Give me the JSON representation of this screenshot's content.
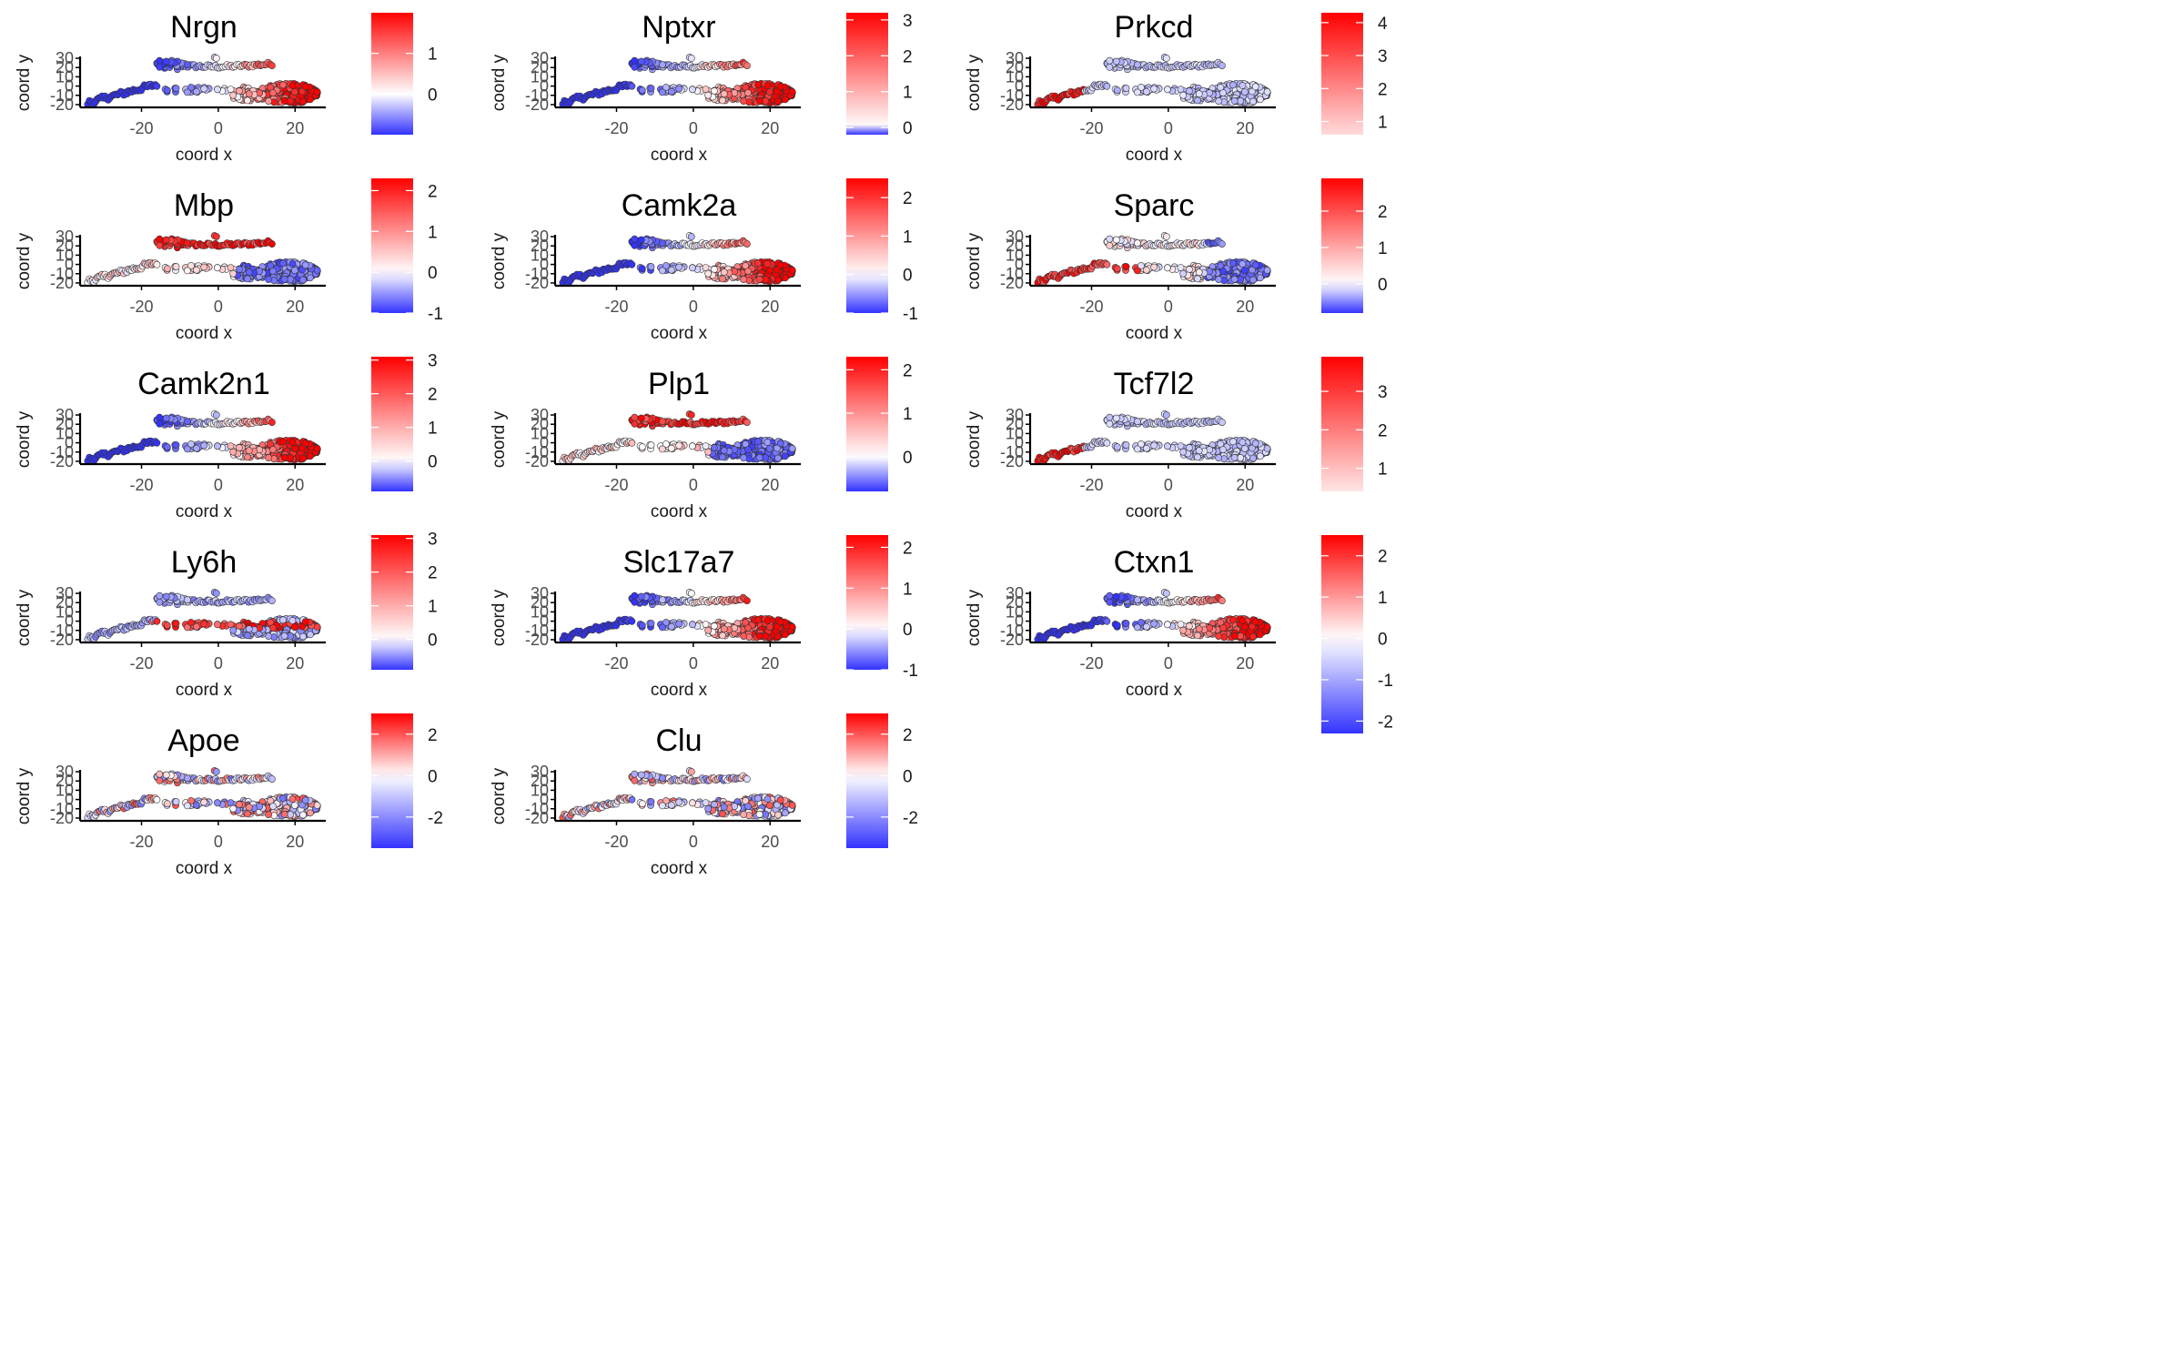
{
  "figure": {
    "xlabel": "coord x",
    "ylabel": "coord y",
    "xticks": [
      -20,
      0,
      20
    ],
    "yticks": [
      30,
      20,
      10,
      0,
      -10,
      -20
    ],
    "xlim": [
      -36,
      28
    ],
    "ylim": [
      -23,
      32
    ],
    "colors": {
      "low": "#3333ff",
      "mid": "#ffffff",
      "high": "#ff0000"
    }
  },
  "chart_data": [
    {
      "type": "scatter",
      "title": "Nrgn",
      "legend_ticks": [
        1,
        0
      ],
      "pattern": "right_high",
      "legend_range": [
        -1,
        2
      ]
    },
    {
      "type": "scatter",
      "title": "Nptxr",
      "legend_ticks": [
        3,
        2,
        1,
        0
      ],
      "pattern": "right_high",
      "legend_range": [
        -0.2,
        3.2
      ]
    },
    {
      "type": "scatter",
      "title": "Prkcd",
      "legend_ticks": [
        4,
        3,
        2,
        1
      ],
      "pattern": "far_left",
      "legend_range": [
        0.6,
        4.3
      ]
    },
    {
      "type": "scatter",
      "title": "Mbp",
      "legend_ticks": [
        2,
        1,
        0,
        -1
      ],
      "pattern": "upper_band",
      "legend_range": [
        -1,
        2.3
      ]
    },
    {
      "type": "scatter",
      "title": "Camk2a",
      "legend_ticks": [
        2,
        1,
        0,
        -1
      ],
      "pattern": "right_high",
      "legend_range": [
        -1,
        2.5
      ]
    },
    {
      "type": "scatter",
      "title": "Sparc",
      "legend_ticks": [
        2,
        1,
        0
      ],
      "pattern": "left_mid",
      "legend_range": [
        -0.8,
        2.9
      ]
    },
    {
      "type": "scatter",
      "title": "Camk2n1",
      "legend_ticks": [
        3,
        2,
        1,
        0
      ],
      "pattern": "right_high",
      "legend_range": [
        -0.9,
        3.1
      ]
    },
    {
      "type": "scatter",
      "title": "Plp1",
      "legend_ticks": [
        2,
        1,
        0
      ],
      "pattern": "upper_band",
      "legend_range": [
        -0.8,
        2.3
      ]
    },
    {
      "type": "scatter",
      "title": "Tcf7l2",
      "legend_ticks": [
        3,
        2,
        1
      ],
      "pattern": "far_left",
      "legend_range": [
        0.4,
        3.9
      ]
    },
    {
      "type": "scatter",
      "title": "Ly6h",
      "legend_ticks": [
        3,
        2,
        1,
        0
      ],
      "pattern": "middle_band",
      "legend_range": [
        -0.9,
        3.1
      ]
    },
    {
      "type": "scatter",
      "title": "Slc17a7",
      "legend_ticks": [
        2,
        1,
        0,
        -1
      ],
      "pattern": "right_high",
      "legend_range": [
        -1,
        2.3
      ]
    },
    {
      "type": "scatter",
      "title": "Ctxn1",
      "legend_ticks": [
        2,
        1,
        0,
        -1,
        -2
      ],
      "pattern": "right_high",
      "legend_range": [
        -2.3,
        2.5
      ]
    },
    {
      "type": "scatter",
      "title": "Apoe",
      "legend_ticks": [
        2,
        0,
        -2
      ],
      "pattern": "mixed",
      "legend_range": [
        -3.5,
        3
      ]
    },
    {
      "type": "scatter",
      "title": "Clu",
      "legend_ticks": [
        2,
        0,
        -2
      ],
      "pattern": "mixed",
      "legend_range": [
        -3.5,
        3
      ]
    }
  ]
}
